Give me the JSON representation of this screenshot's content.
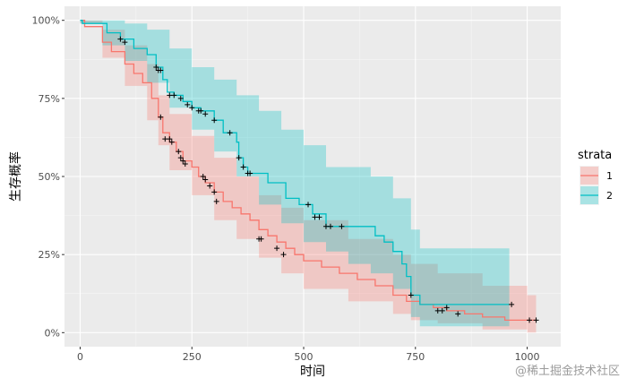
{
  "chart_data": {
    "type": "line",
    "subtype": "kaplan-meier survival curve",
    "xlabel": "时间",
    "ylabel": "生存概率",
    "xlim": [
      -35,
      1075
    ],
    "ylim": [
      -0.045,
      1.045
    ],
    "x_ticks": [
      0,
      250,
      500,
      750,
      1000
    ],
    "x_tick_labels": [
      "0",
      "250",
      "500",
      "750",
      "1000"
    ],
    "y_ticks": [
      0,
      0.25,
      0.5,
      0.75,
      1.0
    ],
    "y_tick_labels": [
      "0%",
      "25%",
      "50%",
      "75%",
      "100%"
    ],
    "legend": {
      "title": "strata",
      "position": "right"
    },
    "series": [
      {
        "name": "1",
        "color": "#F8766D",
        "ci_fill": "#F8766D",
        "steps": [
          [
            0,
            1.0
          ],
          [
            10,
            0.98
          ],
          [
            50,
            0.93
          ],
          [
            70,
            0.9
          ],
          [
            100,
            0.86
          ],
          [
            120,
            0.83
          ],
          [
            140,
            0.8
          ],
          [
            160,
            0.75
          ],
          [
            175,
            0.69
          ],
          [
            185,
            0.64
          ],
          [
            200,
            0.61
          ],
          [
            215,
            0.58
          ],
          [
            230,
            0.55
          ],
          [
            250,
            0.53
          ],
          [
            265,
            0.5
          ],
          [
            280,
            0.48
          ],
          [
            300,
            0.45
          ],
          [
            320,
            0.42
          ],
          [
            340,
            0.4
          ],
          [
            360,
            0.38
          ],
          [
            380,
            0.36
          ],
          [
            400,
            0.33
          ],
          [
            420,
            0.31
          ],
          [
            440,
            0.29
          ],
          [
            460,
            0.27
          ],
          [
            480,
            0.25
          ],
          [
            500,
            0.23
          ],
          [
            540,
            0.21
          ],
          [
            580,
            0.19
          ],
          [
            620,
            0.17
          ],
          [
            660,
            0.15
          ],
          [
            700,
            0.12
          ],
          [
            730,
            0.1
          ],
          [
            760,
            0.09
          ],
          [
            790,
            0.08
          ],
          [
            820,
            0.07
          ],
          [
            860,
            0.06
          ],
          [
            900,
            0.05
          ],
          [
            950,
            0.04
          ],
          [
            1020,
            0.04
          ]
        ],
        "ci_upper": [
          [
            0,
            1.0
          ],
          [
            50,
            0.97
          ],
          [
            100,
            0.92
          ],
          [
            150,
            0.86
          ],
          [
            175,
            0.76
          ],
          [
            200,
            0.7
          ],
          [
            250,
            0.63
          ],
          [
            300,
            0.56
          ],
          [
            350,
            0.5
          ],
          [
            400,
            0.44
          ],
          [
            450,
            0.4
          ],
          [
            500,
            0.36
          ],
          [
            600,
            0.3
          ],
          [
            700,
            0.25
          ],
          [
            740,
            0.22
          ],
          [
            800,
            0.19
          ],
          [
            900,
            0.15
          ],
          [
            1000,
            0.12
          ],
          [
            1020,
            0.12
          ]
        ],
        "ci_lower": [
          [
            0,
            0.99
          ],
          [
            50,
            0.88
          ],
          [
            100,
            0.79
          ],
          [
            150,
            0.68
          ],
          [
            175,
            0.6
          ],
          [
            200,
            0.52
          ],
          [
            250,
            0.44
          ],
          [
            300,
            0.36
          ],
          [
            350,
            0.3
          ],
          [
            400,
            0.24
          ],
          [
            450,
            0.19
          ],
          [
            500,
            0.14
          ],
          [
            600,
            0.1
          ],
          [
            700,
            0.06
          ],
          [
            740,
            0.04
          ],
          [
            800,
            0.03
          ],
          [
            900,
            0.01
          ],
          [
            1000,
            0.0
          ],
          [
            1020,
            0.0
          ]
        ],
        "censored": [
          [
            180,
            0.69
          ],
          [
            190,
            0.62
          ],
          [
            200,
            0.62
          ],
          [
            205,
            0.61
          ],
          [
            220,
            0.58
          ],
          [
            225,
            0.56
          ],
          [
            230,
            0.55
          ],
          [
            235,
            0.54
          ],
          [
            275,
            0.5
          ],
          [
            280,
            0.49
          ],
          [
            290,
            0.47
          ],
          [
            300,
            0.45
          ],
          [
            305,
            0.42
          ],
          [
            400,
            0.3
          ],
          [
            405,
            0.3
          ],
          [
            440,
            0.27
          ],
          [
            455,
            0.25
          ],
          [
            800,
            0.07
          ],
          [
            810,
            0.07
          ],
          [
            845,
            0.06
          ],
          [
            1005,
            0.04
          ],
          [
            1020,
            0.04
          ]
        ]
      },
      {
        "name": "2",
        "color": "#00BFC4",
        "ci_fill": "#00BFC4",
        "steps": [
          [
            0,
            1.0
          ],
          [
            5,
            0.99
          ],
          [
            60,
            0.96
          ],
          [
            90,
            0.94
          ],
          [
            120,
            0.91
          ],
          [
            150,
            0.89
          ],
          [
            170,
            0.85
          ],
          [
            185,
            0.81
          ],
          [
            195,
            0.77
          ],
          [
            210,
            0.76
          ],
          [
            230,
            0.74
          ],
          [
            250,
            0.72
          ],
          [
            270,
            0.71
          ],
          [
            300,
            0.68
          ],
          [
            320,
            0.64
          ],
          [
            350,
            0.61
          ],
          [
            355,
            0.56
          ],
          [
            365,
            0.53
          ],
          [
            375,
            0.51
          ],
          [
            420,
            0.48
          ],
          [
            460,
            0.43
          ],
          [
            490,
            0.41
          ],
          [
            520,
            0.38
          ],
          [
            550,
            0.34
          ],
          [
            600,
            0.34
          ],
          [
            640,
            0.34
          ],
          [
            660,
            0.31
          ],
          [
            680,
            0.29
          ],
          [
            700,
            0.26
          ],
          [
            720,
            0.22
          ],
          [
            730,
            0.18
          ],
          [
            740,
            0.12
          ],
          [
            760,
            0.09
          ],
          [
            960,
            0.09
          ]
        ],
        "ci_upper": [
          [
            0,
            1.0
          ],
          [
            50,
            1.0
          ],
          [
            100,
            0.99
          ],
          [
            150,
            0.97
          ],
          [
            200,
            0.91
          ],
          [
            250,
            0.85
          ],
          [
            300,
            0.81
          ],
          [
            350,
            0.76
          ],
          [
            400,
            0.71
          ],
          [
            450,
            0.65
          ],
          [
            500,
            0.6
          ],
          [
            550,
            0.53
          ],
          [
            600,
            0.53
          ],
          [
            650,
            0.5
          ],
          [
            700,
            0.43
          ],
          [
            740,
            0.33
          ],
          [
            760,
            0.27
          ],
          [
            960,
            0.27
          ]
        ],
        "ci_lower": [
          [
            0,
            0.99
          ],
          [
            50,
            0.92
          ],
          [
            100,
            0.87
          ],
          [
            150,
            0.8
          ],
          [
            200,
            0.72
          ],
          [
            250,
            0.65
          ],
          [
            300,
            0.58
          ],
          [
            350,
            0.5
          ],
          [
            400,
            0.41
          ],
          [
            450,
            0.35
          ],
          [
            500,
            0.29
          ],
          [
            550,
            0.26
          ],
          [
            600,
            0.22
          ],
          [
            650,
            0.19
          ],
          [
            700,
            0.14
          ],
          [
            740,
            0.05
          ],
          [
            760,
            0.02
          ],
          [
            960,
            0.02
          ]
        ],
        "censored": [
          [
            90,
            0.94
          ],
          [
            100,
            0.93
          ],
          [
            170,
            0.85
          ],
          [
            175,
            0.84
          ],
          [
            180,
            0.84
          ],
          [
            200,
            0.76
          ],
          [
            210,
            0.76
          ],
          [
            225,
            0.75
          ],
          [
            240,
            0.73
          ],
          [
            250,
            0.72
          ],
          [
            265,
            0.71
          ],
          [
            270,
            0.71
          ],
          [
            280,
            0.7
          ],
          [
            300,
            0.68
          ],
          [
            335,
            0.64
          ],
          [
            355,
            0.56
          ],
          [
            365,
            0.53
          ],
          [
            375,
            0.51
          ],
          [
            380,
            0.51
          ],
          [
            510,
            0.41
          ],
          [
            525,
            0.37
          ],
          [
            535,
            0.37
          ],
          [
            550,
            0.34
          ],
          [
            560,
            0.34
          ],
          [
            585,
            0.34
          ],
          [
            740,
            0.12
          ],
          [
            820,
            0.08
          ],
          [
            965,
            0.09
          ]
        ]
      }
    ]
  },
  "watermark": "@稀土掘金技术社区"
}
